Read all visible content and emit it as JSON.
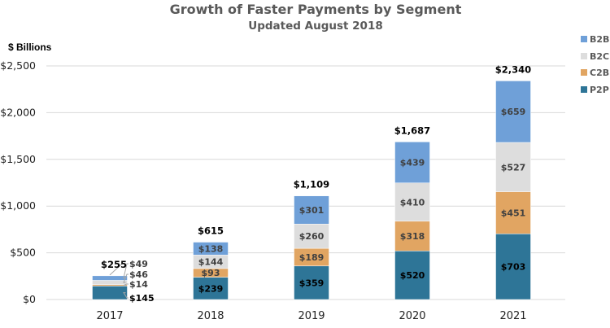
{
  "chart_data": {
    "type": "bar",
    "stacked": true,
    "title": "Growth of Faster Payments by Segment",
    "subtitle": "Updated August 2018",
    "ylabel": "$ Billions",
    "xlabel": "",
    "ylim": [
      0,
      2500
    ],
    "yticks": [
      0,
      500,
      1000,
      1500,
      2000,
      2500
    ],
    "ytick_labels": [
      "$0",
      "$500",
      "$1,000",
      "$1,500",
      "$2,000",
      "$2,500"
    ],
    "grid": true,
    "legend_position": "top-right",
    "categories": [
      "2017",
      "2018",
      "2019",
      "2020",
      "2021"
    ],
    "series": [
      {
        "name": "P2P",
        "color": "#2E7597",
        "label_color": "#000000",
        "values": [
          145,
          239,
          359,
          520,
          703
        ],
        "labels": [
          "$145",
          "$239",
          "$359",
          "$520",
          "$703"
        ]
      },
      {
        "name": "C2B",
        "color": "#E1A562",
        "label_color": "#404040",
        "values": [
          14,
          93,
          189,
          318,
          451
        ],
        "labels": [
          "$14",
          "$93",
          "$189",
          "$318",
          "$451"
        ]
      },
      {
        "name": "B2C",
        "color": "#DDDDDD",
        "label_color": "#404040",
        "values": [
          46,
          144,
          260,
          410,
          527
        ],
        "labels": [
          "$46",
          "$144",
          "$260",
          "$410",
          "$527"
        ]
      },
      {
        "name": "B2B",
        "color": "#6FA0D8",
        "label_color": "#404040",
        "values": [
          49,
          138,
          301,
          439,
          659
        ],
        "labels": [
          "$49",
          "$138",
          "$301",
          "$439",
          "$659"
        ]
      }
    ],
    "totals": [
      255,
      615,
      1109,
      1687,
      2340
    ],
    "total_labels": [
      "$255",
      "$615",
      "$1,109",
      "$1,687",
      "$2,340"
    ],
    "legend_order": [
      "B2B",
      "B2C",
      "C2B",
      "P2P"
    ]
  }
}
